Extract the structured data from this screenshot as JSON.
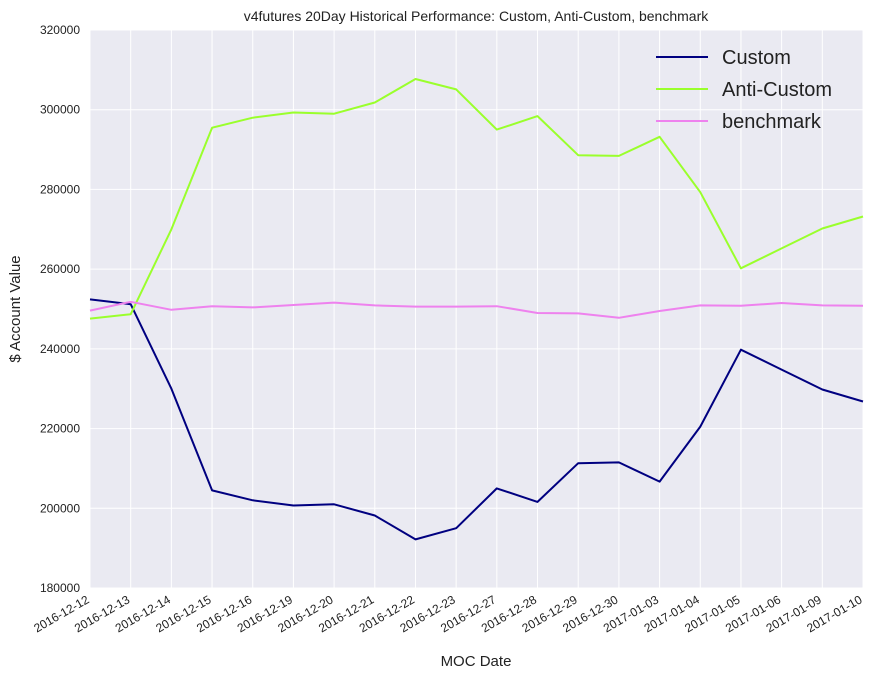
{
  "chart_data": {
    "type": "line",
    "title": "v4futures 20Day Historical Performance: Custom, Anti-Custom, benchmark",
    "xlabel": "MOC Date",
    "ylabel": "$ Account Value",
    "x": [
      "2016-12-12",
      "2016-12-13",
      "2016-12-14",
      "2016-12-15",
      "2016-12-16",
      "2016-12-19",
      "2016-12-20",
      "2016-12-21",
      "2016-12-22",
      "2016-12-23",
      "2016-12-27",
      "2016-12-28",
      "2016-12-29",
      "2016-12-30",
      "2017-01-03",
      "2017-01-04",
      "2017-01-05",
      "2017-01-06",
      "2017-01-09",
      "2017-01-10"
    ],
    "ylim": [
      180000,
      320000
    ],
    "yticks": [
      180000,
      200000,
      220000,
      240000,
      260000,
      280000,
      300000,
      320000
    ],
    "ytick_labels": [
      "180000",
      "200000",
      "220000",
      "240000",
      "260000",
      "280000",
      "300000",
      "320000"
    ],
    "grid": true,
    "legend_position": "top-right",
    "background": "#eaeaf2",
    "series": [
      {
        "name": "Custom",
        "color": "#000080",
        "values": [
          252400,
          251200,
          230000,
          204500,
          202000,
          200700,
          201000,
          198200,
          192200,
          195000,
          205000,
          201600,
          211300,
          211500,
          206700,
          220500,
          239800,
          234800,
          229800,
          226800
        ]
      },
      {
        "name": "Anti-Custom",
        "color": "#9aff2c",
        "values": [
          247600,
          248700,
          270000,
          295500,
          298000,
          299300,
          299000,
          301800,
          307700,
          305100,
          295000,
          298400,
          288600,
          288400,
          293200,
          279300,
          260200,
          265200,
          270200,
          273200
        ]
      },
      {
        "name": "benchmark",
        "color": "#ee82ee",
        "values": [
          249600,
          251800,
          249800,
          250700,
          250400,
          251000,
          251600,
          250900,
          250600,
          250600,
          250700,
          249000,
          248900,
          247800,
          249500,
          250900,
          250800,
          251500,
          250900,
          250800
        ]
      }
    ]
  }
}
